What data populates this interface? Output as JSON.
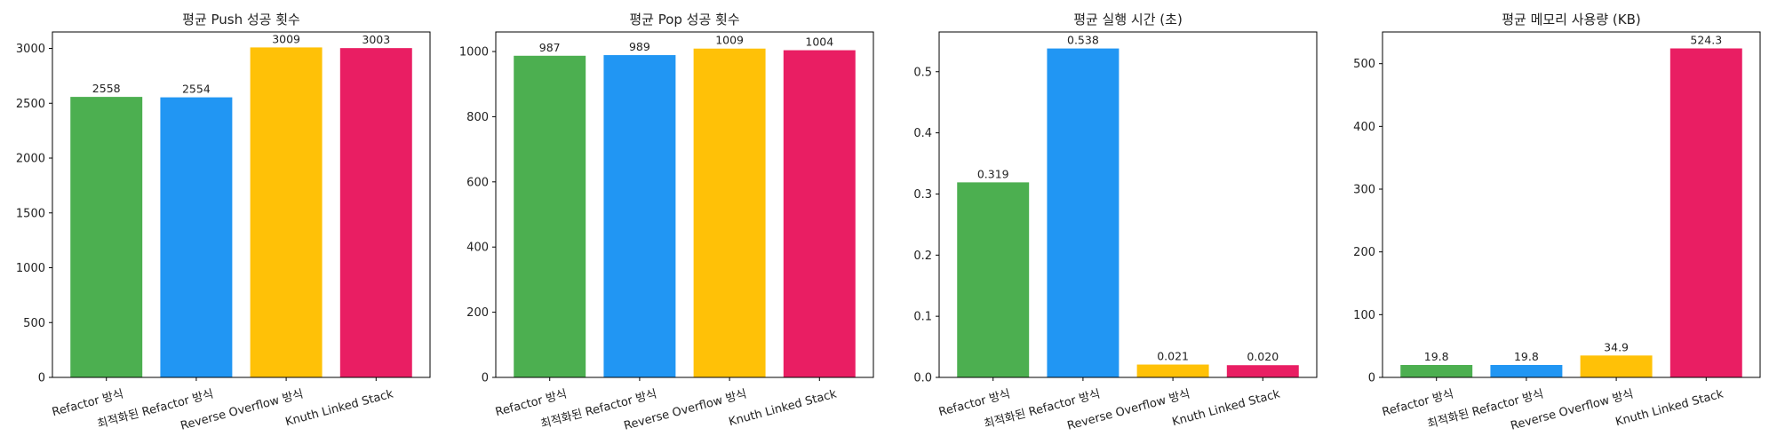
{
  "chart_data": [
    {
      "type": "bar",
      "title": "평균 Push 성공 횟수",
      "categories": [
        "Refactor 방식",
        "최적화된 Refactor 방식",
        "Reverse Overflow 방식",
        "Knuth Linked Stack"
      ],
      "values": [
        2558,
        2554,
        3009,
        3003
      ],
      "value_labels": [
        "2558",
        "2554",
        "3009",
        "3003"
      ],
      "ylim": [
        0,
        3150
      ],
      "yticks": [
        0,
        500,
        1000,
        1500,
        2000,
        2500,
        3000
      ],
      "ytick_labels": [
        "0",
        "500",
        "1000",
        "1500",
        "2000",
        "2500",
        "3000"
      ],
      "grid": false
    },
    {
      "type": "bar",
      "title": "평균 Pop 성공 횟수",
      "categories": [
        "Refactor 방식",
        "최적화된 Refactor 방식",
        "Reverse Overflow 방식",
        "Knuth Linked Stack"
      ],
      "values": [
        987,
        989,
        1009,
        1004
      ],
      "value_labels": [
        "987",
        "989",
        "1009",
        "1004"
      ],
      "ylim": [
        0,
        1060
      ],
      "yticks": [
        0,
        200,
        400,
        600,
        800,
        1000
      ],
      "ytick_labels": [
        "0",
        "200",
        "400",
        "600",
        "800",
        "1000"
      ],
      "grid": false
    },
    {
      "type": "bar",
      "title": "평균 실행 시간 (초)",
      "categories": [
        "Refactor 방식",
        "최적화된 Refactor 방식",
        "Reverse Overflow 방식",
        "Knuth Linked Stack"
      ],
      "values": [
        0.319,
        0.538,
        0.021,
        0.02
      ],
      "value_labels": [
        "0.319",
        "0.538",
        "0.021",
        "0.020"
      ],
      "ylim": [
        0,
        0.565
      ],
      "yticks": [
        0,
        0.1,
        0.2,
        0.3,
        0.4,
        0.5
      ],
      "ytick_labels": [
        "0.0",
        "0.1",
        "0.2",
        "0.3",
        "0.4",
        "0.5"
      ],
      "grid": false
    },
    {
      "type": "bar",
      "title": "평균 메모리 사용량 (KB)",
      "categories": [
        "Refactor 방식",
        "최적화된 Refactor 방식",
        "Reverse Overflow 방식",
        "Knuth Linked Stack"
      ],
      "values": [
        19.8,
        19.8,
        34.9,
        524.3
      ],
      "value_labels": [
        "19.8",
        "19.8",
        "34.9",
        "524.3"
      ],
      "ylim": [
        0,
        550.5
      ],
      "yticks": [
        0,
        100,
        200,
        300,
        400,
        500
      ],
      "ytick_labels": [
        "0",
        "100",
        "200",
        "300",
        "400",
        "500"
      ],
      "grid": false
    }
  ],
  "colors": {
    "bars": [
      "#4caf50",
      "#2196f3",
      "#ffc107",
      "#e91e63"
    ],
    "axis": "#000000",
    "text": "#222222"
  }
}
